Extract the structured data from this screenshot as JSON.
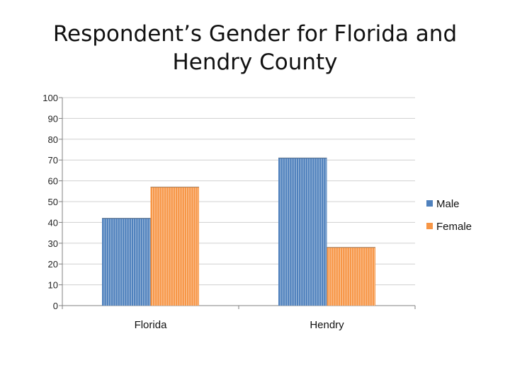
{
  "chart_data": {
    "type": "bar",
    "title_line1": "Respondent’s Gender for Florida and",
    "title_line2": "Hendry County",
    "categories": [
      "Florida",
      "Hendry"
    ],
    "series": [
      {
        "name": "Male",
        "values": [
          42,
          71
        ],
        "color": "#4f81bd"
      },
      {
        "name": "Female",
        "values": [
          57,
          28
        ],
        "color": "#f79646"
      }
    ],
    "ylim": [
      0,
      100
    ],
    "yticks": [
      0,
      10,
      20,
      30,
      40,
      50,
      60,
      70,
      80,
      90,
      100
    ],
    "grid": true,
    "legend": "right",
    "xlabel": "",
    "ylabel": ""
  }
}
